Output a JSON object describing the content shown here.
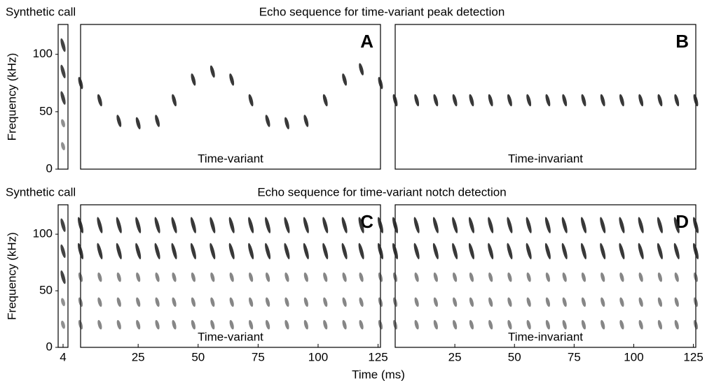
{
  "chart_data": [
    {
      "type": "call",
      "title": "Synthetic call",
      "ylabel": "Frequency (kHz)",
      "ylim": [
        0,
        126
      ],
      "yticks": [
        0,
        50,
        100
      ],
      "xlim": [
        0,
        8
      ],
      "x": [
        4
      ],
      "components": [
        20,
        40,
        62,
        85,
        108
      ],
      "color": "#222"
    },
    {
      "type": "spectrogram",
      "title": "Echo sequence for time-variant peak detection",
      "label": "A",
      "annotation": "Time-variant",
      "xlim": [
        1,
        126
      ],
      "ylim": [
        0,
        126
      ],
      "color": "#222",
      "x": [
        1,
        9,
        17,
        25,
        33,
        40,
        48,
        56,
        64,
        72,
        79,
        87,
        95,
        103,
        111,
        118,
        126
      ],
      "y": [
        75,
        60,
        42,
        40,
        42,
        60,
        78,
        85,
        78,
        60,
        42,
        40,
        42,
        60,
        78,
        87,
        75
      ]
    },
    {
      "type": "spectrogram",
      "label": "B",
      "annotation": "Time-invariant",
      "xlim": [
        0,
        126
      ],
      "ylim": [
        0,
        126
      ],
      "color": "#222",
      "x": [
        0,
        9,
        17,
        25,
        32,
        40,
        48,
        56,
        64,
        71,
        79,
        87,
        95,
        103,
        111,
        118,
        126
      ],
      "y": [
        60,
        60,
        60,
        60,
        60,
        60,
        60,
        60,
        60,
        60,
        60,
        60,
        60,
        60,
        60,
        60,
        60
      ]
    },
    {
      "type": "call",
      "title": "Synthetic call",
      "ylabel": "Frequency (kHz)",
      "ylim": [
        0,
        126
      ],
      "yticks": [
        0,
        50,
        100
      ],
      "xlim": [
        0,
        8
      ],
      "xticks": [
        4
      ],
      "x": [
        4
      ],
      "components": [
        20,
        40,
        62,
        85,
        108
      ],
      "color": "#222"
    },
    {
      "type": "comb",
      "title": "Echo sequence for time-variant notch detection",
      "label": "C",
      "annotation": "Time-variant",
      "xlabel": "Time (ms)",
      "xlim": [
        1,
        126
      ],
      "ylim": [
        0,
        126
      ],
      "xticks": [
        25,
        50,
        75,
        100,
        125
      ],
      "color": "#222",
      "x": [
        1,
        9,
        17,
        25,
        33,
        40,
        48,
        56,
        64,
        72,
        79,
        87,
        95,
        103,
        111,
        118,
        126
      ],
      "components": [
        20,
        40,
        62,
        85,
        108
      ]
    },
    {
      "type": "comb",
      "label": "D",
      "annotation": "Time-invariant",
      "xlim": [
        0,
        126
      ],
      "ylim": [
        0,
        126
      ],
      "xticks": [
        25,
        50,
        75,
        100,
        125
      ],
      "color": "#222",
      "x": [
        0,
        9,
        17,
        25,
        32,
        40,
        48,
        56,
        64,
        71,
        79,
        87,
        95,
        103,
        111,
        118,
        126
      ],
      "components": [
        20,
        40,
        62,
        85,
        108
      ]
    }
  ]
}
